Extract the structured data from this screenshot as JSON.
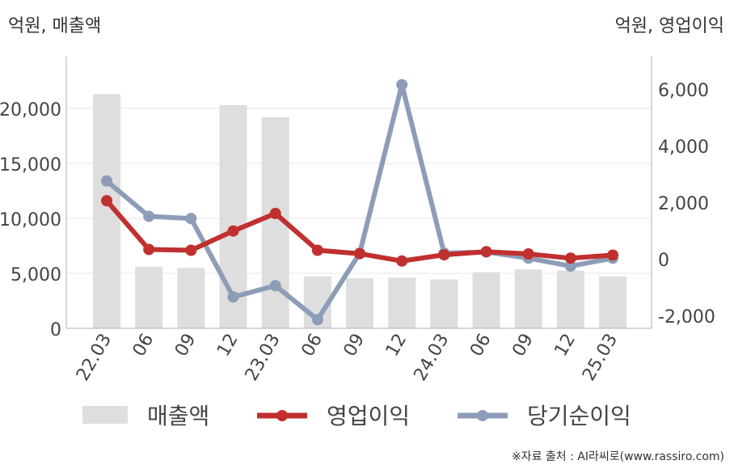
{
  "units": {
    "left": "억원, 매출액",
    "right": "억원, 영업이익"
  },
  "source": "※자료 출처 : AI라씨로(www.rassiro.com)",
  "legend": {
    "revenue": "매출액",
    "op": "영업이익",
    "net": "당기순이익"
  },
  "colors": {
    "bar": "#dedede",
    "op": "#c0302f",
    "net": "#8e9db7",
    "grid": "#e6e6e6",
    "axis": "#b0b0b0"
  },
  "chart_data": {
    "type": "bar",
    "categories": [
      "22.03",
      "06",
      "09",
      "12",
      "23.03",
      "06",
      "09",
      "12",
      "24.03",
      "06",
      "09",
      "12",
      "25.03"
    ],
    "left_axis": {
      "ticks": [
        "0",
        "5,000",
        "10,000",
        "15,000",
        "20,000"
      ],
      "ylim": [
        0,
        20000
      ]
    },
    "right_axis": {
      "ticks": [
        "-2,000",
        "0",
        "2,000",
        "4,000",
        "6,000"
      ],
      "ylim": [
        -2000,
        6000
      ]
    },
    "series": [
      {
        "name": "매출액",
        "type": "bar",
        "axis": "left",
        "values": [
          21300,
          5600,
          5500,
          20300,
          19200,
          4700,
          4550,
          4600,
          4450,
          5100,
          5350,
          5250,
          4700
        ]
      },
      {
        "name": "영업이익",
        "type": "line",
        "axis": "right",
        "values": [
          2050,
          330,
          300,
          980,
          1600,
          300,
          180,
          -80,
          140,
          250,
          170,
          20,
          130
        ]
      },
      {
        "name": "당기순이익",
        "type": "line",
        "axis": "right",
        "values": [
          2750,
          1500,
          1420,
          -1350,
          -950,
          -2150,
          200,
          6150,
          200,
          240,
          20,
          -260,
          20
        ]
      }
    ]
  }
}
